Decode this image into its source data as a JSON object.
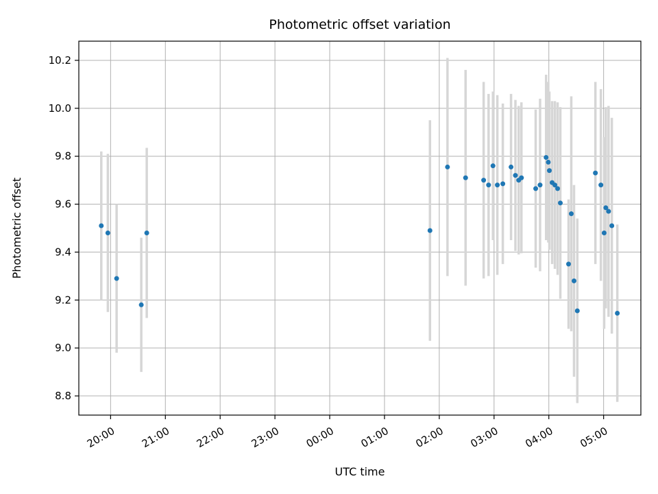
{
  "chart_data": {
    "type": "scatter",
    "title": "Photometric offset variation",
    "xlabel": "UTC time",
    "ylabel": "Photometric offset",
    "grid": true,
    "legend": "none",
    "marker_color": "#1f77b4",
    "errorbar_color": "#d6d6d6",
    "grid_color": "#b0b0b0",
    "frame_color": "#000000",
    "xlim": [
      19.42,
      29.68
    ],
    "ylim": [
      8.72,
      10.28
    ],
    "x_ticks": [
      {
        "pos": 20,
        "label": "20:00"
      },
      {
        "pos": 21,
        "label": "21:00"
      },
      {
        "pos": 22,
        "label": "22:00"
      },
      {
        "pos": 23,
        "label": "23:00"
      },
      {
        "pos": 24,
        "label": "00:00"
      },
      {
        "pos": 25,
        "label": "01:00"
      },
      {
        "pos": 26,
        "label": "02:00"
      },
      {
        "pos": 27,
        "label": "03:00"
      },
      {
        "pos": 28,
        "label": "04:00"
      },
      {
        "pos": 29,
        "label": "05:00"
      }
    ],
    "y_ticks": [
      {
        "pos": 8.8,
        "label": "8.8"
      },
      {
        "pos": 9.0,
        "label": "9.0"
      },
      {
        "pos": 9.2,
        "label": "9.2"
      },
      {
        "pos": 9.4,
        "label": "9.4"
      },
      {
        "pos": 9.6,
        "label": "9.6"
      },
      {
        "pos": 9.8,
        "label": "9.8"
      },
      {
        "pos": 10.0,
        "label": "10.0"
      },
      {
        "pos": 10.2,
        "label": "10.2"
      }
    ],
    "points": [
      {
        "t": 19.83,
        "y": 9.51,
        "err": 0.31
      },
      {
        "t": 19.95,
        "y": 9.48,
        "err": 0.33
      },
      {
        "t": 20.11,
        "y": 9.29,
        "err": 0.31
      },
      {
        "t": 20.56,
        "y": 9.18,
        "err": 0.28
      },
      {
        "t": 20.66,
        "y": 9.48,
        "err": 0.355
      },
      {
        "t": 25.83,
        "y": 9.49,
        "err": 0.46
      },
      {
        "t": 26.15,
        "y": 9.755,
        "err": 0.455
      },
      {
        "t": 26.48,
        "y": 9.71,
        "err": 0.45
      },
      {
        "t": 26.81,
        "y": 9.7,
        "err": 0.41
      },
      {
        "t": 26.9,
        "y": 9.68,
        "err": 0.38
      },
      {
        "t": 26.98,
        "y": 9.76,
        "err": 0.31
      },
      {
        "t": 27.06,
        "y": 9.68,
        "err": 0.375
      },
      {
        "t": 27.16,
        "y": 9.685,
        "err": 0.335
      },
      {
        "t": 27.31,
        "y": 9.755,
        "err": 0.305
      },
      {
        "t": 27.39,
        "y": 9.72,
        "err": 0.315
      },
      {
        "t": 27.45,
        "y": 9.7,
        "err": 0.31
      },
      {
        "t": 27.5,
        "y": 9.71,
        "err": 0.315
      },
      {
        "t": 27.76,
        "y": 9.665,
        "err": 0.33
      },
      {
        "t": 27.84,
        "y": 9.68,
        "err": 0.36
      },
      {
        "t": 27.95,
        "y": 9.795,
        "err": 0.345
      },
      {
        "t": 27.99,
        "y": 9.775,
        "err": 0.335
      },
      {
        "t": 28.01,
        "y": 9.74,
        "err": 0.33
      },
      {
        "t": 28.06,
        "y": 9.69,
        "err": 0.34
      },
      {
        "t": 28.11,
        "y": 9.68,
        "err": 0.35
      },
      {
        "t": 28.16,
        "y": 9.665,
        "err": 0.36
      },
      {
        "t": 28.21,
        "y": 9.605,
        "err": 0.4
      },
      {
        "t": 28.36,
        "y": 9.35,
        "err": 0.27
      },
      {
        "t": 28.41,
        "y": 9.56,
        "err": 0.49
      },
      {
        "t": 28.46,
        "y": 9.28,
        "err": 0.4
      },
      {
        "t": 28.52,
        "y": 9.155,
        "err": 0.385
      },
      {
        "t": 28.85,
        "y": 9.73,
        "err": 0.38
      },
      {
        "t": 28.95,
        "y": 9.68,
        "err": 0.4
      },
      {
        "t": 29.01,
        "y": 9.48,
        "err": 0.4
      },
      {
        "t": 29.04,
        "y": 9.585,
        "err": 0.42
      },
      {
        "t": 29.09,
        "y": 9.57,
        "err": 0.44
      },
      {
        "t": 29.15,
        "y": 9.51,
        "err": 0.45
      },
      {
        "t": 29.25,
        "y": 9.145,
        "err": 0.37
      }
    ]
  }
}
